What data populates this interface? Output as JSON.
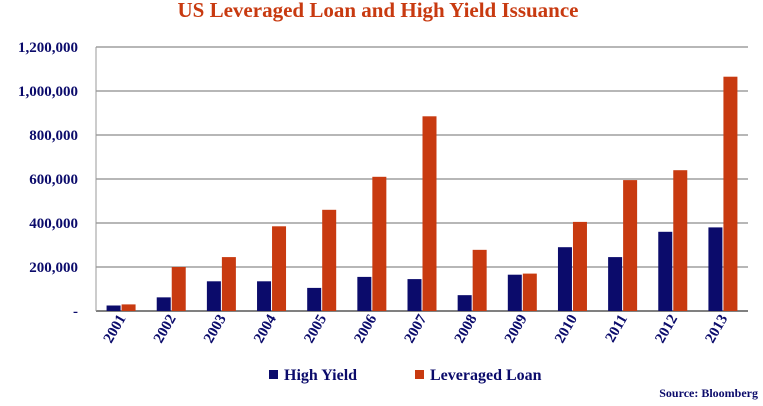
{
  "chart_data": {
    "type": "bar",
    "title": "US Leveraged Loan and High Yield Issuance",
    "categories": [
      "2001",
      "2002",
      "2003",
      "2004",
      "2005",
      "2006",
      "2007",
      "2008",
      "2009",
      "2010",
      "2011",
      "2012",
      "2013"
    ],
    "series": [
      {
        "name": "High Yield",
        "color": "#0b0b6b",
        "values": [
          25000,
          62000,
          135000,
          135000,
          105000,
          155000,
          145000,
          72000,
          165000,
          290000,
          245000,
          360000,
          380000
        ]
      },
      {
        "name": "Leveraged Loan",
        "color": "#c83a10",
        "values": [
          30000,
          200000,
          245000,
          385000,
          460000,
          610000,
          885000,
          278000,
          170000,
          405000,
          595000,
          640000,
          1065000
        ]
      }
    ],
    "ylim": [
      0,
      1200000
    ],
    "yticks": [
      0,
      200000,
      400000,
      600000,
      800000,
      1000000,
      1200000
    ],
    "ytick_labels": [
      "-",
      "200,000",
      "400,000",
      "600,000",
      "800,000",
      "1,000,000",
      "1,200,000"
    ],
    "xlabel": "",
    "ylabel": "",
    "grid": true,
    "legend_position": "bottom",
    "title_color": "#c83a10",
    "text_color": "#0b0b6b",
    "source": "Source: Bloomberg"
  }
}
